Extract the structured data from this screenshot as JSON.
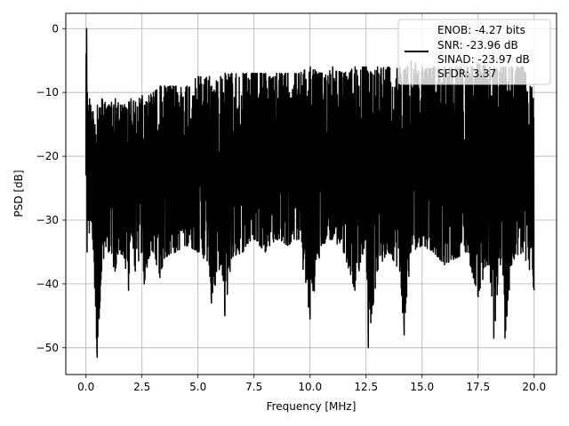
{
  "chart_data": {
    "type": "line",
    "title": "",
    "xlabel": "Frequency [MHz]",
    "ylabel": "PSD [dB]",
    "xlim": [
      -0.9,
      21.0
    ],
    "ylim": [
      -54.2,
      2.4
    ],
    "x_ticks": [
      0.0,
      2.5,
      5.0,
      7.5,
      10.0,
      12.5,
      15.0,
      17.5,
      20.0
    ],
    "x_tick_labels": [
      "0.0",
      "2.5",
      "5.0",
      "7.5",
      "10.0",
      "12.5",
      "15.0",
      "17.5",
      "20.0"
    ],
    "y_ticks": [
      0,
      -10,
      -20,
      -30,
      -40,
      -50
    ],
    "y_tick_labels": [
      "0",
      "−10",
      "−20",
      "−30",
      "−40",
      "−50"
    ],
    "grid": true,
    "legend": {
      "placement": "top-right",
      "entries": [
        "ENOB: -4.27 bits",
        "SNR: -23.96 dB",
        "SINAD: -23.97 dB",
        "SFDR: 3.37"
      ]
    },
    "series": [
      {
        "color": "#000000",
        "x": [
          0.0,
          0.02,
          0.05,
          0.08,
          0.1,
          0.15,
          0.2,
          0.3,
          0.5,
          0.7,
          1.0,
          1.3,
          1.6,
          1.9,
          2.0,
          2.2,
          2.5,
          2.6,
          2.8,
          3.0,
          3.3,
          3.5,
          4.0,
          4.5,
          5.0,
          5.5,
          5.6,
          6.0,
          6.2,
          6.5,
          7.0,
          7.5,
          8.0,
          8.2,
          8.5,
          9.0,
          9.5,
          10.0,
          10.5,
          11.0,
          11.5,
          12.0,
          12.5,
          12.6,
          13.0,
          13.5,
          14.0,
          14.2,
          14.5,
          15.0,
          15.5,
          16.0,
          16.5,
          17.0,
          17.5,
          18.0,
          18.2,
          18.5,
          18.7,
          19.0,
          19.5,
          20.0
        ],
        "upper": [
          -4.0,
          0.0,
          -10.0,
          -12.0,
          -13.0,
          -11.0,
          -12.0,
          -13.0,
          -12.0,
          -11.0,
          -12.0,
          -11.0,
          -12.0,
          -11.5,
          -11.0,
          -11.5,
          -10.5,
          -12.0,
          -10.5,
          -10.0,
          -9.0,
          -9.0,
          -9.0,
          -9.0,
          -7.5,
          -7.5,
          -9.0,
          -7.5,
          -7.0,
          -7.0,
          -7.0,
          -7.0,
          -7.0,
          -7.5,
          -7.0,
          -7.0,
          -7.0,
          -6.0,
          -7.0,
          -6.0,
          -7.0,
          -6.0,
          -6.0,
          -7.0,
          -6.0,
          -6.0,
          -6.0,
          -6.5,
          -5.0,
          -6.0,
          -6.0,
          -6.0,
          -6.0,
          -6.0,
          -5.5,
          -6.0,
          -6.0,
          -6.0,
          -6.0,
          -6.0,
          -6.0,
          -10.0
        ],
        "lower": [
          -23.0,
          -22.0,
          -35.0,
          -30.0,
          -28.0,
          -32.0,
          -30.0,
          -33.0,
          -51.5,
          -38.0,
          -35.0,
          -38.0,
          -35.0,
          -41.0,
          -32.0,
          -38.0,
          -35.0,
          -40.0,
          -36.0,
          -35.0,
          -39.0,
          -36.0,
          -35.0,
          -34.0,
          -35.0,
          -37.0,
          -43.0,
          -37.0,
          -45.0,
          -36.0,
          -35.0,
          -33.0,
          -35.0,
          -34.0,
          -33.0,
          -34.0,
          -33.0,
          -45.5,
          -34.0,
          -33.0,
          -35.0,
          -41.0,
          -33.0,
          -50.0,
          -38.0,
          -35.0,
          -38.0,
          -48.0,
          -35.0,
          -34.0,
          -35.0,
          -37.0,
          -36.0,
          -35.0,
          -42.0,
          -37.0,
          -48.5,
          -37.0,
          -48.5,
          -37.0,
          -35.0,
          -41.0
        ]
      }
    ]
  }
}
